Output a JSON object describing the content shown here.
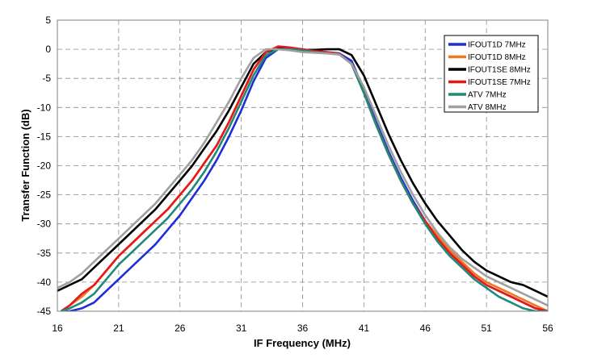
{
  "chart_data": {
    "type": "line",
    "title": "",
    "xlabel": "IF Frequency (MHz)",
    "ylabel": "Transfer Function (dB)",
    "xlim": [
      16,
      56
    ],
    "ylim": [
      -45,
      5
    ],
    "xticks": [
      16,
      21,
      26,
      31,
      36,
      41,
      46,
      51,
      56
    ],
    "yticks": [
      5,
      0,
      -5,
      -10,
      -15,
      -20,
      -25,
      -30,
      -35,
      -40,
      -45
    ],
    "grid": true,
    "legend_position": "top-right",
    "series": [
      {
        "name": "IFOUT1D 7MHz",
        "color": "#1f2fd6",
        "x": [
          16.3,
          17,
          18,
          19,
          20,
          21,
          22,
          23,
          24,
          25,
          26,
          27,
          28,
          29,
          30,
          31,
          32,
          33,
          34,
          35,
          36,
          37,
          38,
          39,
          40,
          41,
          42,
          43,
          44,
          45,
          46,
          47,
          48,
          49,
          50,
          51,
          52,
          53,
          54,
          55,
          56
        ],
        "y": [
          -45,
          -45,
          -44.5,
          -43.5,
          -41.5,
          -39.5,
          -37.5,
          -35.5,
          -33.5,
          -31,
          -28.5,
          -25.5,
          -22.5,
          -19,
          -15,
          -10.5,
          -5.5,
          -1.5,
          0,
          0,
          0,
          -0.3,
          -0.5,
          -0.7,
          -2,
          -7,
          -12.5,
          -17.5,
          -22,
          -26,
          -29.5,
          -32.5,
          -35,
          -37,
          -39,
          -40.5,
          -41.5,
          -42.5,
          -43.5,
          -44.5,
          -45
        ]
      },
      {
        "name": "IFOUT1D 8MHz",
        "color": "#f07820",
        "x": [
          16.3,
          17,
          18,
          19,
          20,
          21,
          22,
          23,
          24,
          25,
          26,
          27,
          28,
          29,
          30,
          31,
          32,
          33,
          34,
          35,
          36,
          37,
          38,
          39,
          40,
          41,
          42,
          43,
          44,
          45,
          46,
          47,
          48,
          49,
          50,
          51,
          52,
          53,
          54,
          55,
          56
        ],
        "y": [
          -45,
          -44,
          -42.5,
          -40.5,
          -38,
          -35.5,
          -33.5,
          -31.5,
          -29.5,
          -27.5,
          -25,
          -22.5,
          -19.5,
          -16.5,
          -12.5,
          -8,
          -3.5,
          -0.5,
          0.3,
          0,
          -0.3,
          -0.5,
          -0.6,
          -0.8,
          -2.5,
          -7.5,
          -13,
          -18,
          -22.5,
          -26.5,
          -29.5,
          -32,
          -34.5,
          -36.5,
          -38.5,
          -40,
          -41,
          -42,
          -43,
          -44,
          -45
        ]
      },
      {
        "name": "IFOUT1SE 8MHz",
        "color": "#000000",
        "x": [
          16,
          17,
          18,
          19,
          20,
          21,
          22,
          23,
          24,
          25,
          26,
          27,
          28,
          29,
          30,
          31,
          32,
          33,
          34,
          35,
          36,
          37,
          38,
          39,
          40,
          41,
          42,
          43,
          44,
          45,
          46,
          47,
          48,
          49,
          50,
          51,
          52,
          53,
          54,
          55,
          56
        ],
        "y": [
          -41.5,
          -40.5,
          -39.5,
          -37.5,
          -35.5,
          -33.5,
          -31.5,
          -29.5,
          -27.5,
          -25,
          -22.5,
          -20,
          -17,
          -14,
          -10.5,
          -6.5,
          -2.5,
          -0.5,
          0.2,
          0,
          -0.1,
          -0.1,
          0,
          0,
          -1,
          -4.5,
          -9.5,
          -14.5,
          -19,
          -23,
          -26.5,
          -29.5,
          -32,
          -34.5,
          -36.5,
          -38,
          -39,
          -40,
          -40.5,
          -41.5,
          -42.5
        ]
      },
      {
        "name": "IFOUT1SE 7MHz",
        "color": "#e81818",
        "x": [
          16.3,
          17,
          18,
          19,
          20,
          21,
          22,
          23,
          24,
          25,
          26,
          27,
          28,
          29,
          30,
          31,
          32,
          33,
          34,
          35,
          36,
          37,
          38,
          39,
          40,
          41,
          42,
          43,
          44,
          45,
          46,
          47,
          48,
          49,
          50,
          51,
          52,
          53,
          54,
          55,
          56
        ],
        "y": [
          -45,
          -44,
          -42,
          -40.5,
          -38,
          -35.5,
          -33.5,
          -31.5,
          -29.5,
          -27.5,
          -25,
          -22.5,
          -19.5,
          -16.5,
          -12.5,
          -8,
          -3.5,
          -0.5,
          0.5,
          0.3,
          0,
          -0.3,
          -0.5,
          -0.8,
          -2.5,
          -7.5,
          -13,
          -18,
          -22.5,
          -26.5,
          -29.5,
          -32.5,
          -35,
          -37,
          -39,
          -40.5,
          -41.5,
          -42.5,
          -43.5,
          -44.5,
          -45
        ]
      },
      {
        "name": "ATV 7MHz",
        "color": "#1f8a78",
        "x": [
          16.3,
          17,
          18,
          19,
          20,
          21,
          22,
          23,
          24,
          25,
          26,
          27,
          28,
          29,
          30,
          31,
          32,
          33,
          34,
          35,
          36,
          37,
          38,
          39,
          40,
          41,
          42,
          43,
          44,
          45,
          46,
          47,
          48,
          49,
          50,
          51,
          52,
          53,
          54,
          55,
          56
        ],
        "y": [
          -45,
          -44.5,
          -43.5,
          -42,
          -39.5,
          -37,
          -35,
          -33,
          -31,
          -29,
          -26.5,
          -24,
          -21,
          -17.5,
          -13.5,
          -9,
          -4.5,
          -1,
          0,
          0,
          -0.2,
          -0.5,
          -0.7,
          -0.9,
          -2.5,
          -7.5,
          -13,
          -18,
          -22.5,
          -26.5,
          -30,
          -33,
          -35.5,
          -37.5,
          -39.5,
          -41,
          -42.5,
          -43.5,
          -44.5,
          -45,
          -45
        ]
      },
      {
        "name": "ATV 8MHz",
        "color": "#a0a0a0",
        "x": [
          16,
          17,
          18,
          19,
          20,
          21,
          22,
          23,
          24,
          25,
          26,
          27,
          28,
          29,
          30,
          31,
          32,
          33,
          34,
          35,
          36,
          37,
          38,
          39,
          40,
          41,
          42,
          43,
          44,
          45,
          46,
          47,
          48,
          49,
          50,
          51,
          52,
          53,
          54,
          55,
          56
        ],
        "y": [
          -41,
          -40,
          -38.5,
          -36.5,
          -34.5,
          -32.5,
          -30.5,
          -28.5,
          -26.5,
          -24,
          -21.5,
          -19,
          -16,
          -12.5,
          -9,
          -5,
          -1.5,
          0,
          0,
          -0.2,
          -0.5,
          -0.6,
          -0.7,
          -0.9,
          -2.5,
          -6.5,
          -11.5,
          -16.5,
          -21,
          -25,
          -28.5,
          -31.5,
          -34,
          -36,
          -37.5,
          -39,
          -40,
          -41,
          -42,
          -43,
          -44
        ]
      }
    ]
  }
}
